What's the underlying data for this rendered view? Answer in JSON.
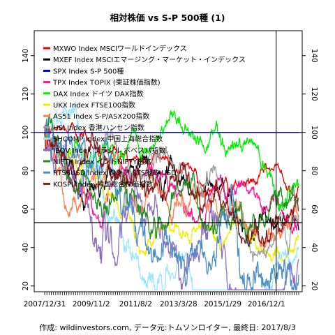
{
  "chart_data": {
    "type": "line",
    "title": "相対株価 vs S-P 500種 (1)",
    "ylim": [
      17,
      153
    ],
    "y_ticks": [
      20,
      40,
      60,
      80,
      100,
      120,
      140
    ],
    "x_ticks": [
      "2007/12/31",
      "2009/11/2",
      "2011/8/2",
      "2013/3/28",
      "2015/1/29",
      "2016/12/1"
    ],
    "x_tick_positions": [
      0,
      0.183,
      0.358,
      0.527,
      0.701,
      0.873
    ],
    "x_range_end_fraction": 1.0,
    "x_range_start": "2007/12/31",
    "x_range_end": "2017/8/3",
    "grid": false,
    "legend_position": "top-left",
    "reference_lines": [
      {
        "orientation": "horizontal",
        "value": 100,
        "color": "#0000cc"
      },
      {
        "orientation": "horizontal",
        "value": 53,
        "color": "#000000"
      },
      {
        "orientation": "vertical",
        "date": "2016/12/1",
        "color": "#000000"
      }
    ],
    "series": [
      {
        "name": "MXWO Index MSCIワールドインデックス",
        "color": "#ee0000",
        "end": 72
      },
      {
        "name": "MXEF Index MSCIエマージング・マーケット・インデックス",
        "color": "#000000",
        "end": 49
      },
      {
        "name": "SPX Index S-P 500種",
        "color": "#0000cc",
        "end": 100
      },
      {
        "name": "TPX Index TOPIX (東証株価指数)",
        "color": "#ff1493",
        "end": 52
      },
      {
        "name": "DAX Index ドイツ DAX指数",
        "color": "#00ee00",
        "end": 72
      },
      {
        "name": "UKX Index FTSE100指数",
        "color": "#eeee00",
        "end": 46
      },
      {
        "name": "AS51 Index S-P/ASX200指数",
        "color": "#ff7f50",
        "end": 54
      },
      {
        "name": "HSI Index 香港ハンセン指数",
        "color": "#a0a0a0",
        "end": 57
      },
      {
        "name": "SHCOMP Index 中国上海総合指数",
        "color": "#9ae6ff",
        "end": 40
      },
      {
        "name": "IBOV Index ブラジル ボベスパ指数",
        "color": "#8a6fc2",
        "end": 34
      },
      {
        "name": "NIFTY Index インドNIFTY指数",
        "color": "#228b22",
        "end": 66
      },
      {
        "name": "RTSSUSD Index ロシア RTS指数 USD",
        "color": "#4a8ec8",
        "end": 26
      },
      {
        "name": "KOSPI Index 韓国総合株価指数",
        "color": "#8b1a1a",
        "end": 59
      }
    ]
  },
  "footer": "作成: wildinvestors.com, データ元:トムソンロイター, 最終日: 2017/8/3"
}
